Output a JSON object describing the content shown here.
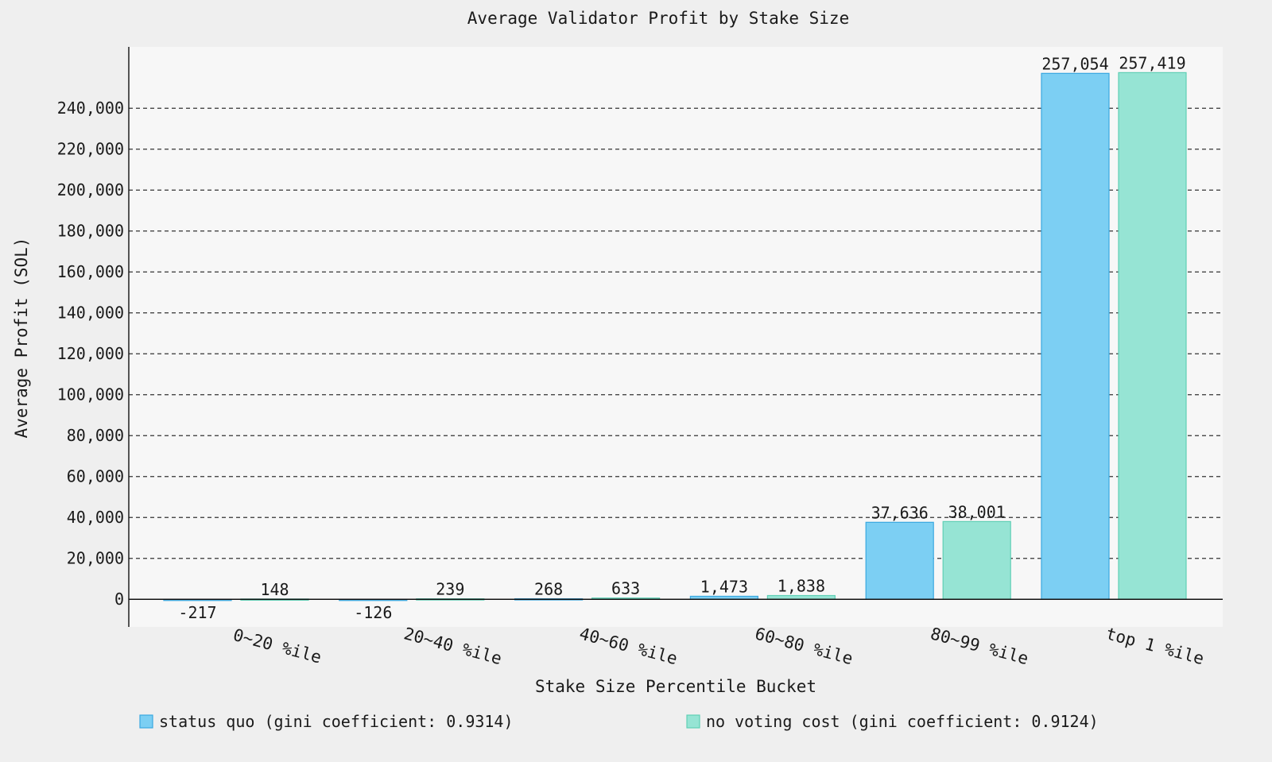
{
  "chart_data": {
    "type": "bar",
    "title": "Average Validator Profit by Stake Size",
    "xlabel": "Stake Size Percentile Bucket",
    "ylabel": "Average Profit (SOL)",
    "categories": [
      "0~20 %ile",
      "20~40 %ile",
      "40~60 %ile",
      "60~80 %ile",
      "80~99 %ile",
      "top 1 %ile"
    ],
    "series": [
      {
        "name": "status quo (gini coefficient: 0.9314)",
        "values": [
          -217,
          -126,
          268,
          1473,
          37636,
          257054
        ],
        "labels": [
          "-217",
          "-126",
          "268",
          "1,473",
          "37,636",
          "257,054"
        ],
        "color": "#7ccff3",
        "border_color": "#3aa8e0"
      },
      {
        "name": "no voting cost (gini coefficient: 0.9124)",
        "values": [
          148,
          239,
          633,
          1838,
          38001,
          257419
        ],
        "labels": [
          "148",
          "239",
          "633",
          "1,838",
          "38,001",
          "257,419"
        ],
        "color": "#96e4d4",
        "border_color": "#5fcfb5"
      }
    ],
    "ylim": [
      -13500,
      270000
    ],
    "yticks": [
      0,
      20000,
      40000,
      60000,
      80000,
      100000,
      120000,
      140000,
      160000,
      180000,
      200000,
      220000,
      240000
    ],
    "ytick_labels": [
      "0",
      "20,000",
      "40,000",
      "60,000",
      "80,000",
      "100,000",
      "120,000",
      "140,000",
      "160,000",
      "180,000",
      "200,000",
      "220,000",
      "240,000"
    ],
    "grid": true,
    "legend_position": "bottom",
    "plot_background": "#f7f7f7",
    "page_background": "#efefef"
  }
}
